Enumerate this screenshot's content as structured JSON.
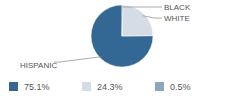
{
  "chart_data": {
    "type": "pie",
    "categories": [
      "HISPANIC",
      "WHITE",
      "BLACK"
    ],
    "values": [
      75.1,
      24.3,
      0.5
    ],
    "value_labels": [
      "75.1%",
      "24.3%",
      "0.5%"
    ],
    "colors": [
      "#336894",
      "#d6dce6",
      "#8da6bf"
    ]
  }
}
